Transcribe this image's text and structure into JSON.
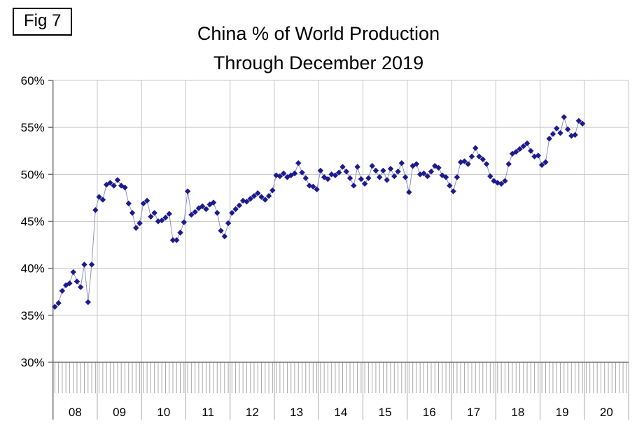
{
  "fig_label": "Fig 7",
  "title": {
    "line1": "China % of World Production",
    "line2": "Through December 2019"
  },
  "colors": {
    "marker": "#1b1b8e",
    "connector_line": "#9090c8",
    "gridline": "#c6c6c6",
    "axis": "#707070",
    "tick": "#a8a8a8",
    "label_text": "#000000"
  },
  "chart_data": {
    "type": "line",
    "title": "China % of World Production Through December 2019",
    "xlabel": "",
    "ylabel": "",
    "x_unit": "month",
    "range": "January 2008 - December 2019",
    "ylim": [
      30,
      60
    ],
    "grid": true,
    "legend": false,
    "y_tick_labels": [
      "60%",
      "55%",
      "50%",
      "45%",
      "40%",
      "35%",
      "30%"
    ],
    "x_axis_year_labels": [
      "08",
      "09",
      "10",
      "11",
      "12",
      "13",
      "14",
      "15",
      "16",
      "17",
      "18",
      "19",
      "20"
    ],
    "series": [
      {
        "name": "China % of world production (monthly)",
        "monthly_values_by_year": {
          "2008": [
            35.9,
            36.3,
            37.6,
            38.2,
            38.4,
            39.6,
            38.6,
            38.0,
            40.4,
            36.4,
            40.4,
            46.2
          ],
          "2009": [
            47.6,
            47.3,
            48.9,
            49.1,
            48.8,
            49.4,
            48.8,
            48.6,
            46.9,
            45.9,
            44.3,
            44.8
          ],
          "2010": [
            46.9,
            47.2,
            45.5,
            45.9,
            45.0,
            45.1,
            45.4,
            45.8,
            43.0,
            43.0,
            43.8,
            44.9
          ],
          "2011": [
            48.2,
            45.7,
            46.0,
            46.4,
            46.6,
            46.3,
            46.8,
            47.0,
            45.9,
            44.0,
            43.4,
            44.8
          ],
          "2012": [
            45.9,
            46.3,
            46.7,
            47.2,
            47.1,
            47.4,
            47.7,
            48.0,
            47.6,
            47.3,
            47.7,
            48.3
          ],
          "2013": [
            49.9,
            49.8,
            50.1,
            49.7,
            49.9,
            50.1,
            51.2,
            50.2,
            49.6,
            48.8,
            48.7,
            48.4
          ],
          "2014": [
            50.4,
            49.7,
            49.5,
            50.0,
            49.9,
            50.2,
            50.8,
            50.3,
            49.6,
            48.8,
            50.8,
            49.5
          ],
          "2015": [
            49.0,
            49.6,
            50.9,
            50.4,
            49.7,
            50.4,
            49.4,
            50.6,
            49.8,
            50.3,
            51.2,
            49.7
          ],
          "2016": [
            48.1,
            50.9,
            51.1,
            50.0,
            50.1,
            49.8,
            50.3,
            50.9,
            50.7,
            49.9,
            49.7,
            48.8
          ],
          "2017": [
            48.2,
            49.7,
            51.3,
            51.4,
            51.1,
            51.9,
            52.8,
            51.9,
            51.6,
            51.1,
            49.8,
            49.3
          ],
          "2018": [
            49.1,
            49.0,
            49.3,
            51.1,
            52.2,
            52.4,
            52.7,
            53.0,
            53.3,
            52.5,
            51.9,
            52.0
          ],
          "2019": [
            51.0,
            51.3,
            53.8,
            54.3,
            54.9,
            54.4,
            56.1,
            54.8,
            54.1,
            54.2,
            55.7,
            55.4
          ]
        }
      }
    ]
  }
}
